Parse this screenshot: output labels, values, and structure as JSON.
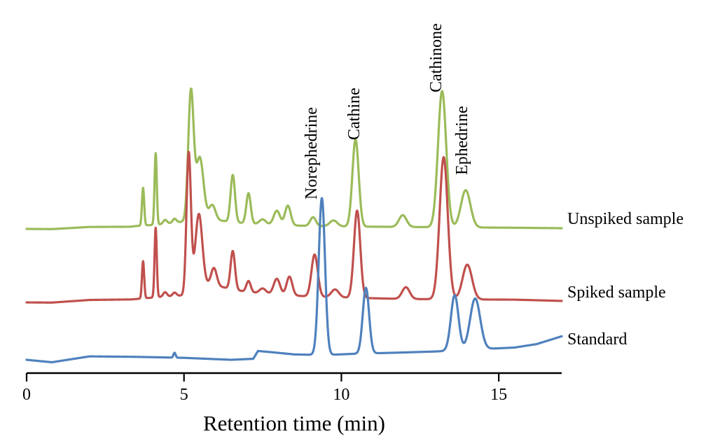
{
  "chart_data": {
    "type": "line",
    "xlabel": "Retention time (min)",
    "xlim": [
      0,
      17
    ],
    "xticks": [
      0,
      5,
      10,
      15
    ],
    "grid": false,
    "series": [
      {
        "name": "Unspiked sample",
        "color": "#9bbb59",
        "baseline": [
          [
            0,
            0
          ],
          [
            0.8,
            -0.02
          ],
          [
            2,
            0.2
          ],
          [
            3.3,
            0.22
          ],
          [
            3.5,
            0.3
          ],
          [
            4.2,
            0.45
          ],
          [
            5,
            0.75
          ],
          [
            5.5,
            1.1
          ],
          [
            6,
            0.9
          ],
          [
            7,
            0.55
          ],
          [
            8,
            0.4
          ],
          [
            9,
            0.3
          ],
          [
            10,
            0.25
          ],
          [
            12,
            0.2
          ],
          [
            14,
            0.15
          ],
          [
            15.5,
            0.12
          ],
          [
            17,
            0.07
          ]
        ],
        "peaks": [
          {
            "x": 3.7,
            "height": 3.85,
            "width": 0.035
          },
          {
            "x": 4.1,
            "height": 7.3,
            "width": 0.035
          },
          {
            "x": 4.4,
            "height": 0.4,
            "width": 0.06
          },
          {
            "x": 4.7,
            "height": 0.4,
            "width": 0.06
          },
          {
            "x": 5.22,
            "height": 13.0,
            "width": 0.085
          },
          {
            "x": 5.5,
            "height": 6.2,
            "width": 0.12
          },
          {
            "x": 5.9,
            "height": 1.5,
            "width": 0.1
          },
          {
            "x": 6.55,
            "height": 4.8,
            "width": 0.07
          },
          {
            "x": 7.05,
            "height": 3.1,
            "width": 0.07
          },
          {
            "x": 7.5,
            "height": 0.5,
            "width": 0.1
          },
          {
            "x": 7.95,
            "height": 1.45,
            "width": 0.1
          },
          {
            "x": 8.3,
            "height": 2.0,
            "width": 0.09
          },
          {
            "x": 9.1,
            "height": 0.9,
            "width": 0.09
          },
          {
            "x": 9.75,
            "height": 0.6,
            "width": 0.12
          },
          {
            "x": 10.45,
            "height": 8.9,
            "width": 0.1
          },
          {
            "x": 11.95,
            "height": 1.2,
            "width": 0.12
          },
          {
            "x": 13.2,
            "height": 13.9,
            "width": 0.13
          },
          {
            "x": 13.95,
            "height": 3.8,
            "width": 0.15
          }
        ]
      },
      {
        "name": "Spiked sample",
        "color": "#c0504d",
        "baseline": [
          [
            0,
            0
          ],
          [
            0.8,
            -0.02
          ],
          [
            2,
            0.25
          ],
          [
            3.3,
            0.3
          ],
          [
            3.5,
            0.35
          ],
          [
            4.2,
            0.55
          ],
          [
            4.9,
            0.7
          ],
          [
            5.0,
            0.7
          ],
          [
            5.5,
            1.9
          ],
          [
            6,
            1.7
          ],
          [
            7,
            1.05
          ],
          [
            8,
            0.8
          ],
          [
            9,
            0.6
          ],
          [
            10,
            0.5
          ],
          [
            12,
            0.35
          ],
          [
            14,
            0.3
          ],
          [
            15.5,
            0.28
          ],
          [
            17,
            0.15
          ]
        ],
        "peaks": [
          {
            "x": 3.7,
            "height": 3.8,
            "width": 0.035
          },
          {
            "x": 4.1,
            "height": 7.1,
            "width": 0.035
          },
          {
            "x": 4.4,
            "height": 0.45,
            "width": 0.06
          },
          {
            "x": 4.7,
            "height": 0.35,
            "width": 0.06
          },
          {
            "x": 5.15,
            "height": 14.2,
            "width": 0.07
          },
          {
            "x": 5.47,
            "height": 7.2,
            "width": 0.11
          },
          {
            "x": 5.95,
            "height": 1.8,
            "width": 0.09
          },
          {
            "x": 6.55,
            "height": 3.9,
            "width": 0.07
          },
          {
            "x": 7.05,
            "height": 1.15,
            "width": 0.07
          },
          {
            "x": 7.5,
            "height": 0.5,
            "width": 0.1
          },
          {
            "x": 7.95,
            "height": 1.6,
            "width": 0.1
          },
          {
            "x": 8.35,
            "height": 1.9,
            "width": 0.09
          },
          {
            "x": 9.15,
            "height": 4.3,
            "width": 0.1
          },
          {
            "x": 9.8,
            "height": 0.8,
            "width": 0.12
          },
          {
            "x": 10.5,
            "height": 8.9,
            "width": 0.1
          },
          {
            "x": 12.05,
            "height": 1.2,
            "width": 0.12
          },
          {
            "x": 13.25,
            "height": 14.5,
            "width": 0.13
          },
          {
            "x": 14.0,
            "height": 3.55,
            "width": 0.15
          }
        ]
      },
      {
        "name": "Standard",
        "color": "#4f81bd",
        "baseline": [
          [
            0,
            0.0
          ],
          [
            0.8,
            -0.25
          ],
          [
            2,
            0.35
          ],
          [
            3.5,
            0.3
          ],
          [
            5,
            0.2
          ],
          [
            6.5,
            0.0
          ],
          [
            7.2,
            0.1
          ],
          [
            7.35,
            0.9
          ],
          [
            7.7,
            0.8
          ],
          [
            8.5,
            0.55
          ],
          [
            9.2,
            0.5
          ],
          [
            9.6,
            0.5
          ],
          [
            10.3,
            0.6
          ],
          [
            12,
            0.75
          ],
          [
            13,
            0.85
          ],
          [
            14.5,
            1.1
          ],
          [
            15.5,
            1.25
          ],
          [
            16.2,
            1.6
          ],
          [
            17,
            2.4
          ]
        ],
        "peaks": [
          {
            "x": 4.7,
            "height": 0.5,
            "width": 0.035
          },
          {
            "x": 9.38,
            "height": 16.0,
            "width": 0.1
          },
          {
            "x": 10.78,
            "height": 6.7,
            "width": 0.1
          },
          {
            "x": 13.6,
            "height": 5.65,
            "width": 0.12
          },
          {
            "x": 14.25,
            "height": 5.2,
            "width": 0.16
          }
        ]
      }
    ],
    "annotations": [
      {
        "text": "Norephedrine",
        "x": 9.15
      },
      {
        "text": "Cathine",
        "x": 10.45
      },
      {
        "text": "Cathinone",
        "x": 13.2
      },
      {
        "text": "Ephedrine",
        "x": 13.95
      }
    ]
  }
}
